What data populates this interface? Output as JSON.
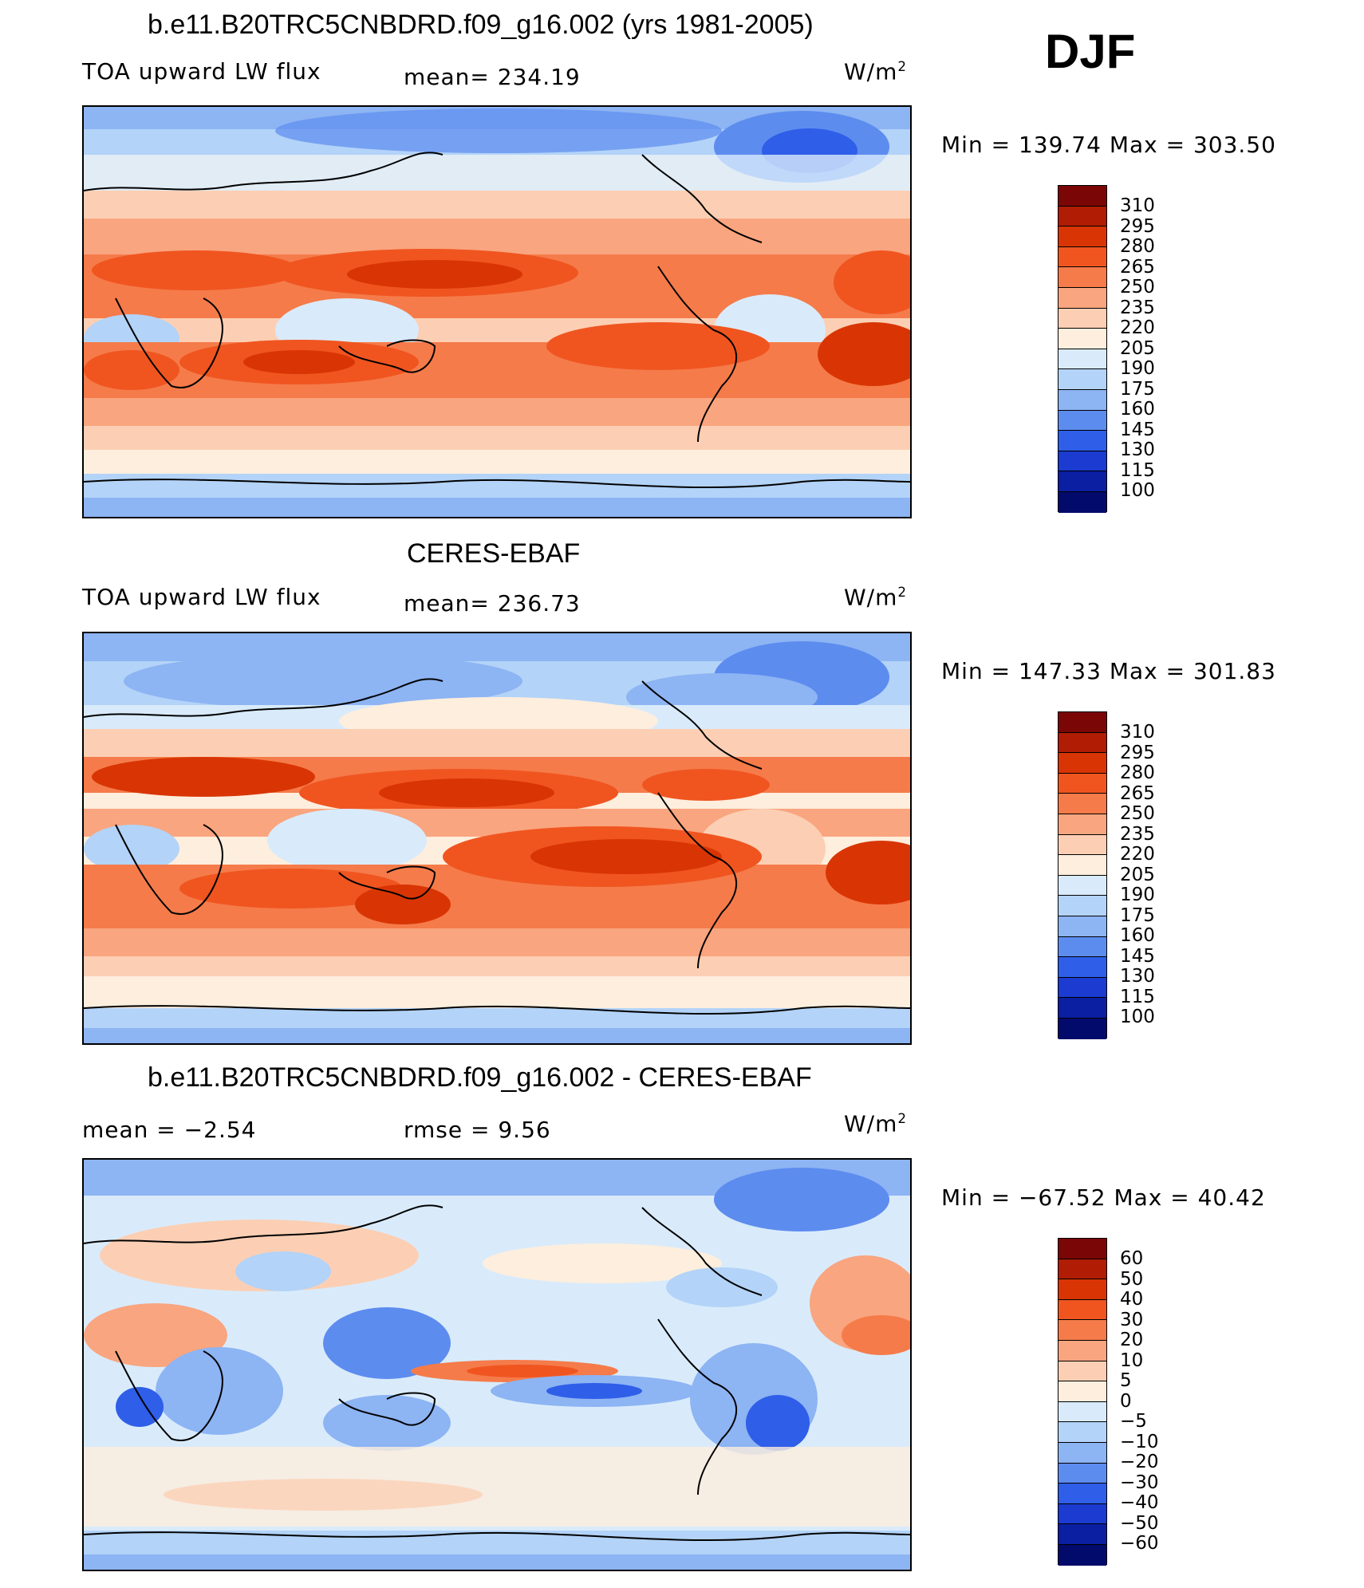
{
  "season": "DJF",
  "units": "W/m",
  "units_sup": "2",
  "panels": [
    {
      "title": "b.e11.B20TRC5CNBDRD.f09_g16.002 (yrs 1981-2005)",
      "variable": "TOA upward LW flux",
      "mean_label": "mean= 234.19",
      "minmax_label": "Min = 139.74 Max = 303.50",
      "colorbar": [
        "310",
        "295",
        "280",
        "265",
        "250",
        "235",
        "220",
        "205",
        "190",
        "175",
        "160",
        "145",
        "130",
        "115",
        "100"
      ]
    },
    {
      "title": "CERES-EBAF",
      "variable": "TOA upward LW flux",
      "mean_label": "mean= 236.73",
      "minmax_label": "Min = 147.33 Max = 301.83",
      "colorbar": [
        "310",
        "295",
        "280",
        "265",
        "250",
        "235",
        "220",
        "205",
        "190",
        "175",
        "160",
        "145",
        "130",
        "115",
        "100"
      ]
    },
    {
      "title": "b.e11.B20TRC5CNBDRD.f09_g16.002 - CERES-EBAF",
      "mean_label": "mean =   −2.54",
      "rmse_label": "rmse =    9.56",
      "minmax_label": "Min = −67.52 Max =  40.42",
      "colorbar": [
        "60",
        "50",
        "40",
        "30",
        "20",
        "10",
        "5",
        "0",
        "−5",
        "−10",
        "−20",
        "−30",
        "−40",
        "−50",
        "−60"
      ]
    }
  ],
  "colors": {
    "colorbar_swatches": [
      "#7a0606",
      "#b01d04",
      "#d93504",
      "#f05520",
      "#f57b4a",
      "#f9a57f",
      "#fccfb4",
      "#fdeedd",
      "#d9ebfb",
      "#b3d3f8",
      "#8db4f3",
      "#5d8cef",
      "#2f5ee8",
      "#1b3bd1",
      "#0a1fa2",
      "#020a6b"
    ]
  }
}
